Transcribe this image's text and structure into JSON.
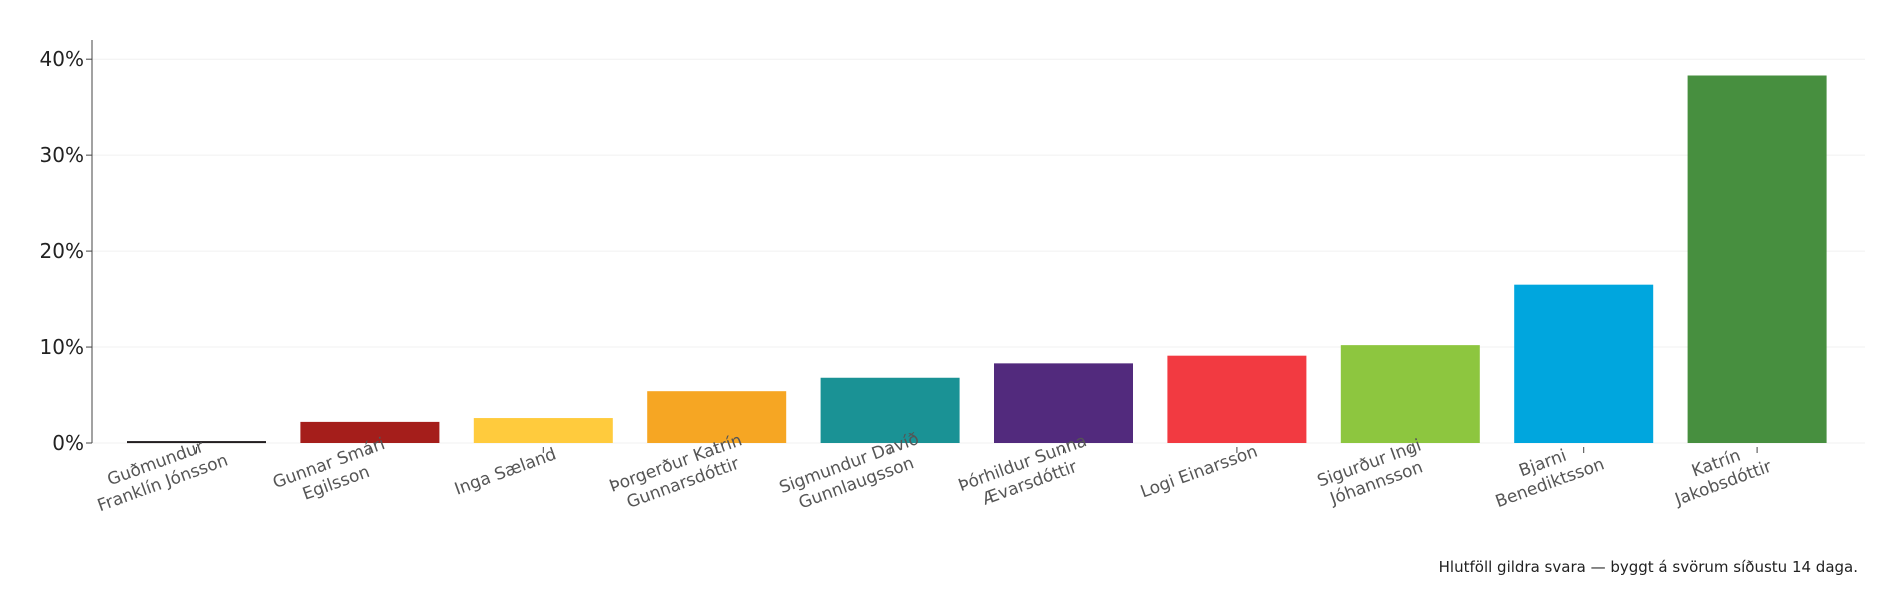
{
  "chart_data": {
    "type": "bar",
    "categories": [
      [
        "Guðmundur",
        "Franklín Jónsson"
      ],
      [
        "Gunnar Smári",
        "Egilsson"
      ],
      [
        "Inga Sæland"
      ],
      [
        "Þorgerður Katrín",
        "Gunnarsdóttir"
      ],
      [
        "Sigmundur Davíð",
        "Gunnlaugsson"
      ],
      [
        "Þórhildur Sunna",
        "Ævarsdóttir"
      ],
      [
        "Logi Einarsson"
      ],
      [
        "Sigurður Ingi",
        "Jóhannsson"
      ],
      [
        "Bjarni",
        "Benediktsson"
      ],
      [
        "Katrín",
        "Jakobsdóttir"
      ]
    ],
    "values": [
      0.2,
      2.2,
      2.6,
      5.4,
      6.8,
      8.3,
      9.1,
      10.2,
      16.5,
      38.3
    ],
    "colors": [
      "#231f20",
      "#a51e1b",
      "#ffcb3d",
      "#f6a623",
      "#1a9295",
      "#522a7d",
      "#f23a41",
      "#8dc63f",
      "#00a6de",
      "#478f3f"
    ],
    "ylim": [
      0,
      42
    ],
    "yticks": [
      0,
      10,
      20,
      30,
      40
    ],
    "ytick_suffix": "%",
    "grid": true,
    "xlabel": "",
    "ylabel": "",
    "title": ""
  },
  "footnote": "Hlutföll gildra svara — byggt á svörum síðustu 14 daga."
}
